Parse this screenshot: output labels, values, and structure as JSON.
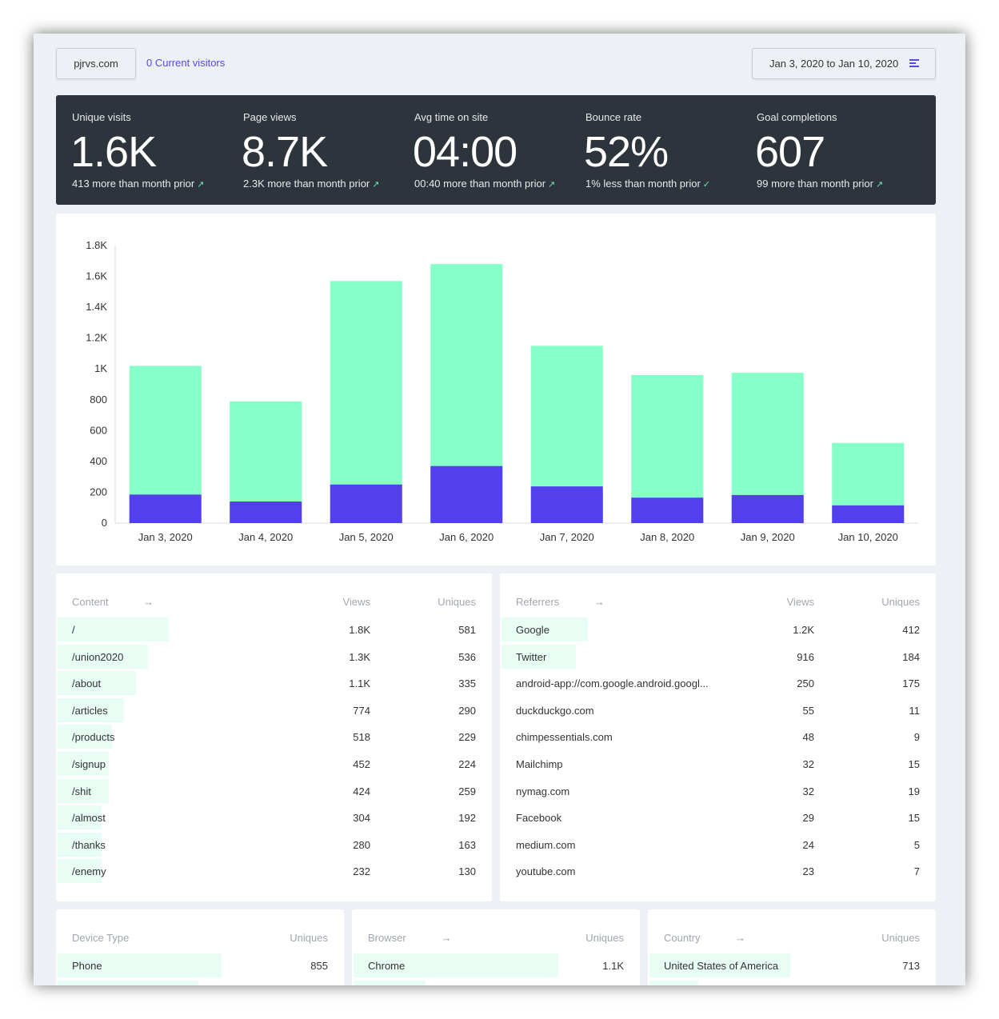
{
  "header": {
    "site": "pjrvs.com",
    "current_visitors": "0 Current visitors",
    "date_range": "Jan 3, 2020 to Jan 10, 2020"
  },
  "stats": [
    {
      "label": "Unique visits",
      "value": "1.6K",
      "delta": "413 more than month prior",
      "arrow": "↗"
    },
    {
      "label": "Page views",
      "value": "8.7K",
      "delta": "2.3K more than month prior",
      "arrow": "↗"
    },
    {
      "label": "Avg time on site",
      "value": "04:00",
      "delta": "00:40 more than month prior",
      "arrow": "↗"
    },
    {
      "label": "Bounce rate",
      "value": "52%",
      "delta": "1% less than month prior",
      "arrow": "✓"
    },
    {
      "label": "Goal completions",
      "value": "607",
      "delta": "99 more than month prior",
      "arrow": "↗"
    }
  ],
  "colors": {
    "pageviews_bar": "#87ffc8",
    "visitors_bar": "#533feb",
    "row_bar": "#e8fdf3",
    "accent": "#5a48e4",
    "dark_panel": "#2e343c"
  },
  "chart_data": {
    "type": "bar",
    "stacked": false,
    "categories": [
      "Jan 3, 2020",
      "Jan 4, 2020",
      "Jan 5, 2020",
      "Jan 6, 2020",
      "Jan 7, 2020",
      "Jan 8, 2020",
      "Jan 9, 2020",
      "Jan 10, 2020"
    ],
    "series": [
      {
        "values": [
          1020,
          790,
          1570,
          1680,
          1150,
          960,
          975,
          520
        ]
      },
      {
        "values": [
          185,
          140,
          250,
          370,
          238,
          165,
          182,
          115
        ]
      }
    ],
    "yticks": [
      "0",
      "200",
      "400",
      "600",
      "800",
      "1K",
      "1.2K",
      "1.4K",
      "1.6K",
      "1.8K"
    ],
    "ylim": [
      0,
      1800
    ],
    "grid": false
  },
  "content": {
    "title": "Content",
    "arrow": "→",
    "col_views": "Views",
    "col_uniques": "Uniques",
    "rows": [
      {
        "label": "/",
        "views": "1.8K",
        "uniques": "581",
        "share": 0.255
      },
      {
        "label": "/union2020",
        "views": "1.3K",
        "uniques": "536",
        "share": 0.207
      },
      {
        "label": "/about",
        "views": "1.1K",
        "uniques": "335",
        "share": 0.18
      },
      {
        "label": "/articles",
        "views": "774",
        "uniques": "290",
        "share": 0.152
      },
      {
        "label": "/products",
        "views": "518",
        "uniques": "229",
        "share": 0.125
      },
      {
        "label": "/signup",
        "views": "452",
        "uniques": "224",
        "share": 0.117
      },
      {
        "label": "/shit",
        "views": "424",
        "uniques": "259",
        "share": 0.117
      },
      {
        "label": "/almost",
        "views": "304",
        "uniques": "192",
        "share": 0.1
      },
      {
        "label": "/thanks",
        "views": "280",
        "uniques": "163",
        "share": 0.1
      },
      {
        "label": "/enemy",
        "views": "232",
        "uniques": "130",
        "share": 0.1
      }
    ]
  },
  "referrers": {
    "title": "Referrers",
    "arrow": "→",
    "col_views": "Views",
    "col_uniques": "Uniques",
    "rows": [
      {
        "label": "Google",
        "views": "1.2K",
        "uniques": "412",
        "share": 0.198
      },
      {
        "label": "Twitter",
        "views": "916",
        "uniques": "184",
        "share": 0.17
      },
      {
        "label": "android-app://com.google.android.googl...",
        "views": "250",
        "uniques": "175",
        "share": 0.0
      },
      {
        "label": "duckduckgo.com",
        "views": "55",
        "uniques": "11",
        "share": 0.0
      },
      {
        "label": "chimpessentials.com",
        "views": "48",
        "uniques": "9",
        "share": 0.0
      },
      {
        "label": "Mailchimp",
        "views": "32",
        "uniques": "15",
        "share": 0.0
      },
      {
        "label": "nymag.com",
        "views": "32",
        "uniques": "19",
        "share": 0.0
      },
      {
        "label": "Facebook",
        "views": "29",
        "uniques": "15",
        "share": 0.0
      },
      {
        "label": "medium.com",
        "views": "24",
        "uniques": "5",
        "share": 0.0
      },
      {
        "label": "youtube.com",
        "views": "23",
        "uniques": "7",
        "share": 0.0
      }
    ]
  },
  "devices": {
    "title": "Device Type",
    "col_uniques": "Uniques",
    "rows": [
      {
        "label": "Phone",
        "uniques": "855",
        "share": 0.57
      },
      {
        "label": "",
        "uniques": "",
        "share": 0.49
      }
    ]
  },
  "browsers": {
    "title": "Browser",
    "arrow": "→",
    "col_uniques": "Uniques",
    "rows": [
      {
        "label": "Chrome",
        "uniques": "1.1K",
        "share": 0.71
      },
      {
        "label": "",
        "uniques": "",
        "share": 0.25
      }
    ]
  },
  "countries": {
    "title": "Country",
    "arrow": "→",
    "col_uniques": "Uniques",
    "rows": [
      {
        "label": "United States of America",
        "uniques": "713",
        "share": 0.49
      },
      {
        "label": "",
        "uniques": "",
        "share": 0.17
      }
    ]
  }
}
